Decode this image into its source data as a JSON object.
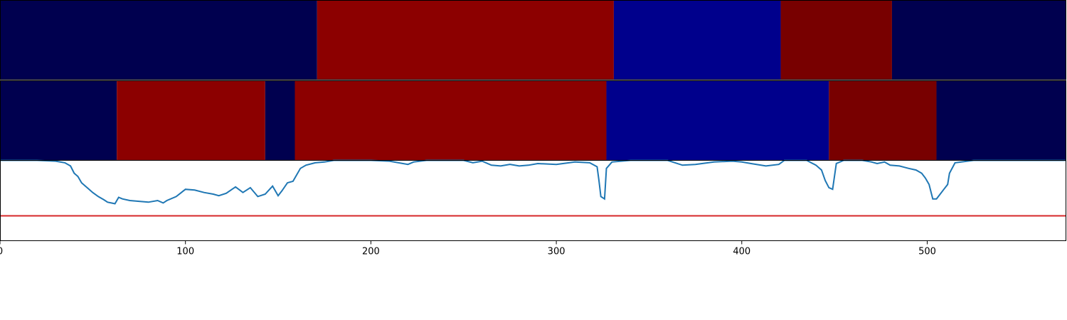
{
  "chart_data": [
    {
      "type": "heatmap",
      "name": "segmentation-track-1",
      "xlim": [
        0,
        575
      ],
      "segments": [
        {
          "start": 0,
          "end": 171,
          "color": "#00004f"
        },
        {
          "start": 171,
          "end": 331,
          "color": "#8c0000"
        },
        {
          "start": 331,
          "end": 421,
          "color": "#00008c"
        },
        {
          "start": 421,
          "end": 481,
          "color": "#780000"
        },
        {
          "start": 481,
          "end": 575,
          "color": "#00004f"
        }
      ]
    },
    {
      "type": "heatmap",
      "name": "segmentation-track-2",
      "xlim": [
        0,
        575
      ],
      "segments": [
        {
          "start": 0,
          "end": 63,
          "color": "#00004f"
        },
        {
          "start": 63,
          "end": 143,
          "color": "#8c0000"
        },
        {
          "start": 143,
          "end": 159,
          "color": "#00004f"
        },
        {
          "start": 159,
          "end": 327,
          "color": "#8c0000"
        },
        {
          "start": 327,
          "end": 447,
          "color": "#00008c"
        },
        {
          "start": 447,
          "end": 505,
          "color": "#780000"
        },
        {
          "start": 505,
          "end": 575,
          "color": "#00004f"
        }
      ]
    },
    {
      "type": "line",
      "xlim": [
        0,
        575
      ],
      "ylim": [
        0,
        1
      ],
      "x_ticks": [
        0,
        100,
        200,
        300,
        400,
        500
      ],
      "threshold": {
        "value": 0.31,
        "color": "#d62728"
      },
      "series": [
        {
          "color": "#1f77b4",
          "points": [
            [
              0,
              1.0
            ],
            [
              20,
              1.0
            ],
            [
              30,
              0.99
            ],
            [
              35,
              0.97
            ],
            [
              38,
              0.93
            ],
            [
              40,
              0.84
            ],
            [
              42,
              0.8
            ],
            [
              44,
              0.72
            ],
            [
              47,
              0.66
            ],
            [
              50,
              0.6
            ],
            [
              53,
              0.55
            ],
            [
              56,
              0.51
            ],
            [
              58,
              0.48
            ],
            [
              60,
              0.47
            ],
            [
              62,
              0.46
            ],
            [
              64,
              0.54
            ],
            [
              66,
              0.52
            ],
            [
              70,
              0.5
            ],
            [
              75,
              0.49
            ],
            [
              80,
              0.48
            ],
            [
              85,
              0.5
            ],
            [
              88,
              0.47
            ],
            [
              90,
              0.5
            ],
            [
              95,
              0.55
            ],
            [
              100,
              0.64
            ],
            [
              105,
              0.63
            ],
            [
              110,
              0.6
            ],
            [
              115,
              0.58
            ],
            [
              118,
              0.56
            ],
            [
              122,
              0.59
            ],
            [
              127,
              0.67
            ],
            [
              131,
              0.6
            ],
            [
              135,
              0.66
            ],
            [
              139,
              0.55
            ],
            [
              143,
              0.58
            ],
            [
              147,
              0.68
            ],
            [
              150,
              0.56
            ],
            [
              152,
              0.62
            ],
            [
              155,
              0.72
            ],
            [
              158,
              0.74
            ],
            [
              162,
              0.9
            ],
            [
              165,
              0.94
            ],
            [
              170,
              0.97
            ],
            [
              175,
              0.98
            ],
            [
              180,
              1.0
            ],
            [
              200,
              1.0
            ],
            [
              210,
              0.99
            ],
            [
              220,
              0.95
            ],
            [
              223,
              0.98
            ],
            [
              230,
              1.0
            ],
            [
              250,
              1.0
            ],
            [
              255,
              0.97
            ],
            [
              260,
              0.99
            ],
            [
              265,
              0.94
            ],
            [
              270,
              0.93
            ],
            [
              275,
              0.95
            ],
            [
              280,
              0.93
            ],
            [
              285,
              0.94
            ],
            [
              290,
              0.96
            ],
            [
              300,
              0.95
            ],
            [
              310,
              0.98
            ],
            [
              318,
              0.97
            ],
            [
              322,
              0.92
            ],
            [
              323,
              0.75
            ],
            [
              324,
              0.55
            ],
            [
              326,
              0.52
            ],
            [
              327,
              0.9
            ],
            [
              330,
              0.98
            ],
            [
              340,
              1.0
            ],
            [
              360,
              1.0
            ],
            [
              368,
              0.94
            ],
            [
              375,
              0.95
            ],
            [
              385,
              0.98
            ],
            [
              395,
              0.99
            ],
            [
              400,
              0.98
            ],
            [
              405,
              0.96
            ],
            [
              413,
              0.93
            ],
            [
              420,
              0.95
            ],
            [
              423,
              1.0
            ],
            [
              435,
              1.0
            ],
            [
              440,
              0.94
            ],
            [
              443,
              0.88
            ],
            [
              445,
              0.75
            ],
            [
              447,
              0.66
            ],
            [
              449,
              0.64
            ],
            [
              451,
              0.96
            ],
            [
              455,
              1.0
            ],
            [
              465,
              1.0
            ],
            [
              470,
              0.98
            ],
            [
              473,
              0.96
            ],
            [
              477,
              0.98
            ],
            [
              480,
              0.94
            ],
            [
              485,
              0.93
            ],
            [
              490,
              0.9
            ],
            [
              494,
              0.88
            ],
            [
              497,
              0.84
            ],
            [
              499,
              0.78
            ],
            [
              501,
              0.7
            ],
            [
              503,
              0.52
            ],
            [
              505,
              0.52
            ],
            [
              507,
              0.58
            ],
            [
              509,
              0.64
            ],
            [
              511,
              0.7
            ],
            [
              512,
              0.84
            ],
            [
              515,
              0.97
            ],
            [
              525,
              1.0
            ],
            [
              560,
              1.0
            ],
            [
              575,
              1.0
            ]
          ]
        }
      ]
    }
  ]
}
